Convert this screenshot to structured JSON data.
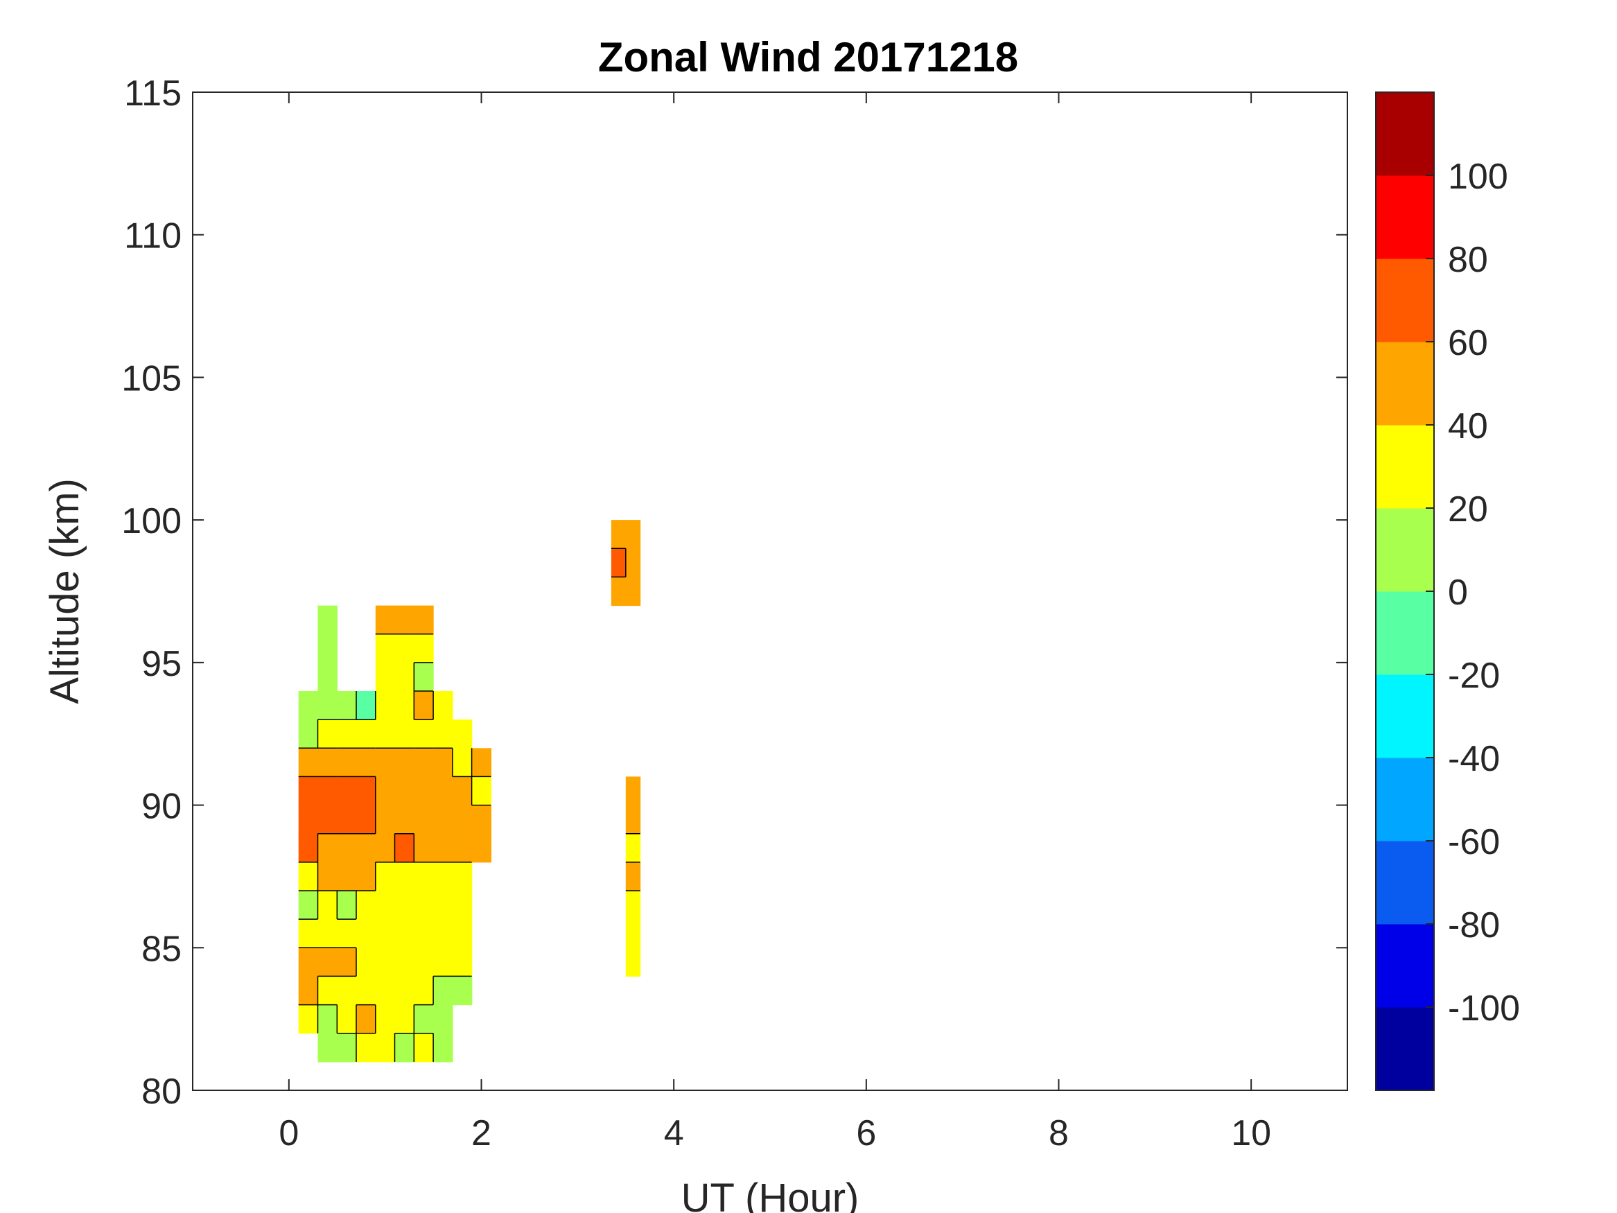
{
  "chart_data": {
    "type": "heatmap",
    "title": "Zonal Wind 20171218",
    "xlabel": "UT (Hour)",
    "ylabel": "Altitude (km)",
    "xlim": [
      -1,
      11
    ],
    "ylim": [
      80,
      115
    ],
    "xticks": [
      0,
      2,
      4,
      6,
      8,
      10
    ],
    "xtick_labels": [
      "0",
      "2",
      "4",
      "6",
      "8",
      "10"
    ],
    "yticks": [
      80,
      85,
      90,
      95,
      100,
      105,
      110,
      115
    ],
    "ytick_labels": [
      "80",
      "85",
      "90",
      "95",
      "100",
      "105",
      "110",
      "115"
    ],
    "grid": false,
    "colorbar": {
      "range": [
        -120,
        120
      ],
      "step": 20,
      "ticks": [
        -100,
        -80,
        -60,
        -40,
        -20,
        0,
        20,
        40,
        60,
        80,
        100
      ],
      "tick_labels": [
        "-100",
        "-80",
        "-60",
        "-40",
        "-20",
        "0",
        "20",
        "40",
        "60",
        "80",
        "100"
      ],
      "colors": [
        "#00009f",
        "#0000e8",
        "#0a5bf0",
        "#00a6ff",
        "#00f5ff",
        "#58ffa3",
        "#a9ff4e",
        "#ffff00",
        "#ffa500",
        "#ff5a00",
        "#ff0000",
        "#a80000"
      ]
    },
    "x": [
      0.2,
      0.4,
      0.6,
      0.8,
      1.0,
      1.2,
      1.4,
      1.6,
      1.8,
      2.0,
      3.45,
      3.55
    ],
    "y": [
      81.5,
      82.5,
      83.5,
      84.5,
      85.5,
      86.5,
      87.5,
      88.5,
      89.5,
      90.5,
      91.5,
      92.5,
      93.5,
      94.5,
      95.5,
      96.5,
      97.5,
      98.5,
      99.5
    ],
    "z": [
      [
        null,
        10,
        10,
        30,
        30,
        10,
        30,
        10,
        null,
        null,
        null,
        null
      ],
      [
        30,
        10,
        30,
        50,
        30,
        30,
        10,
        10,
        null,
        null,
        null,
        null
      ],
      [
        50,
        30,
        30,
        30,
        30,
        30,
        30,
        10,
        10,
        null,
        null,
        null
      ],
      [
        50,
        50,
        50,
        30,
        30,
        30,
        30,
        30,
        30,
        null,
        null,
        30
      ],
      [
        30,
        30,
        30,
        30,
        30,
        30,
        30,
        30,
        30,
        null,
        null,
        30
      ],
      [
        10,
        30,
        10,
        30,
        30,
        30,
        30,
        30,
        30,
        null,
        null,
        30
      ],
      [
        30,
        50,
        50,
        50,
        30,
        30,
        30,
        30,
        30,
        null,
        null,
        50
      ],
      [
        70,
        50,
        50,
        50,
        50,
        70,
        50,
        50,
        50,
        50,
        null,
        30
      ],
      [
        70,
        70,
        70,
        70,
        50,
        50,
        50,
        50,
        50,
        50,
        null,
        50
      ],
      [
        70,
        70,
        70,
        70,
        50,
        50,
        50,
        50,
        50,
        30,
        null,
        50
      ],
      [
        50,
        50,
        50,
        50,
        50,
        50,
        50,
        50,
        30,
        50,
        null,
        null
      ],
      [
        10,
        30,
        30,
        30,
        30,
        30,
        30,
        30,
        30,
        null,
        null,
        null
      ],
      [
        10,
        10,
        10,
        -10,
        30,
        30,
        50,
        30,
        null,
        null,
        null,
        null
      ],
      [
        null,
        10,
        null,
        null,
        30,
        30,
        10,
        null,
        null,
        null,
        null,
        null
      ],
      [
        null,
        10,
        null,
        null,
        30,
        30,
        30,
        null,
        null,
        null,
        null,
        null
      ],
      [
        null,
        10,
        null,
        null,
        50,
        50,
        50,
        null,
        null,
        null,
        null,
        null
      ],
      [
        null,
        null,
        null,
        null,
        null,
        null,
        null,
        null,
        null,
        null,
        50,
        50
      ],
      [
        null,
        null,
        null,
        null,
        null,
        null,
        null,
        null,
        null,
        null,
        70,
        50
      ],
      [
        null,
        null,
        null,
        null,
        null,
        null,
        null,
        null,
        null,
        null,
        50,
        50
      ]
    ]
  }
}
